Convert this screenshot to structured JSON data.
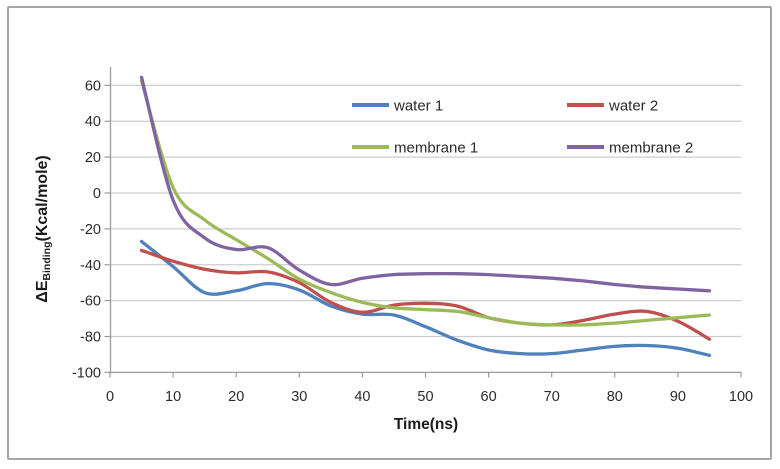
{
  "chart": {
    "border_color": "#a6a6a6",
    "background_color": "#ffffff",
    "gridline_color": "#cdcdcd",
    "axis_color": "#9b9b9b",
    "tick_text_color": "#2b2b2b",
    "title_text_color": "#1a1a1a"
  },
  "chart_data": {
    "type": "line",
    "smooth": true,
    "title": "",
    "xlabel": "Time(ns)",
    "ylabel": "ΔE Binding(Kcal/mole)",
    "ylabel_parts": {
      "symbol": "ΔE",
      "subscript": "Binding",
      "units": "(Kcal/mole)"
    },
    "xlim": [
      0,
      100
    ],
    "ylim": [
      -100,
      70
    ],
    "x_ticks": [
      0,
      10,
      20,
      30,
      40,
      50,
      60,
      70,
      80,
      90,
      100
    ],
    "y_ticks": [
      60,
      40,
      20,
      0,
      -20,
      -40,
      -60,
      -80,
      -100
    ],
    "grid": true,
    "legend_position": "inside-top-two-columns",
    "x": [
      5,
      10,
      15,
      20,
      25,
      30,
      35,
      40,
      45,
      50,
      55,
      60,
      65,
      70,
      75,
      80,
      85,
      90,
      95
    ],
    "series": [
      {
        "name": "water 1",
        "color": "#4f81bd",
        "values": [
          -27,
          -41,
          -55.5,
          -54.5,
          -50.5,
          -54,
          -63,
          -67.5,
          -68,
          -74.5,
          -82,
          -87.5,
          -89.5,
          -89.5,
          -87.5,
          -85.5,
          -85,
          -86.5,
          -90.5
        ]
      },
      {
        "name": "water 2",
        "color": "#c0504d",
        "values": [
          -32,
          -38,
          -42.5,
          -44.5,
          -44,
          -50,
          -61,
          -66.5,
          -62.5,
          -61.5,
          -63,
          -69.5,
          -72.5,
          -73.5,
          -71,
          -67.5,
          -66,
          -71.5,
          -81.5
        ]
      },
      {
        "name": "membrane 1",
        "color": "#9bbb59",
        "values": [
          62.5,
          3,
          -15,
          -26,
          -36.5,
          -48,
          -55.5,
          -61,
          -64,
          -65,
          -66,
          -69.5,
          -72.5,
          -73.5,
          -73.5,
          -72.5,
          -71,
          -69.5,
          -68
        ]
      },
      {
        "name": "membrane 2",
        "color": "#8064a2",
        "values": [
          64.5,
          -4,
          -25,
          -31.5,
          -30.5,
          -43,
          -51,
          -47.5,
          -45.5,
          -45,
          -45,
          -45.5,
          -46.5,
          -47.5,
          -49,
          -51,
          -52.5,
          -53.5,
          -54.5
        ]
      }
    ]
  }
}
